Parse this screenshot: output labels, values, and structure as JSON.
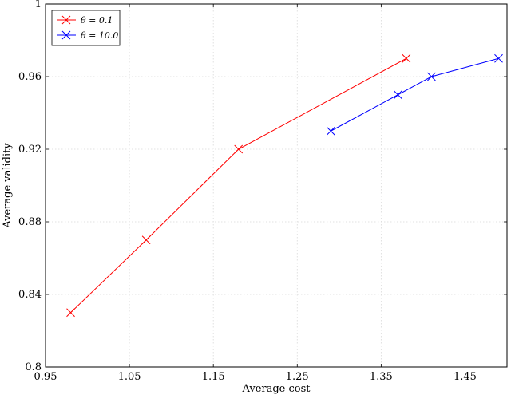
{
  "chart_data": {
    "type": "line",
    "title": "",
    "xlabel": "Average cost",
    "ylabel": "Average validity",
    "xlim": [
      0.95,
      1.5
    ],
    "ylim": [
      0.8,
      1.0
    ],
    "xticks": [
      0.95,
      1.05,
      1.15,
      1.25,
      1.35,
      1.45
    ],
    "xtick_labels": [
      "0.95",
      "1.05",
      "1.15",
      "1.25",
      "1.35",
      "1.45"
    ],
    "yticks": [
      0.8,
      0.84,
      0.88,
      0.92,
      0.96,
      1.0
    ],
    "ytick_labels": [
      "0.8",
      "0.84",
      "0.88",
      "0.92",
      "0.96",
      "1"
    ],
    "grid": true,
    "legend_position": "top-left",
    "marker": "x",
    "series": [
      {
        "name": "θ = 0.1",
        "color": "#ff0000",
        "x": [
          0.98,
          1.07,
          1.18,
          1.38
        ],
        "y": [
          0.83,
          0.87,
          0.92,
          0.97
        ]
      },
      {
        "name": "θ = 10.0",
        "color": "#0000ff",
        "x": [
          1.29,
          1.37,
          1.41,
          1.49
        ],
        "y": [
          0.93,
          0.95,
          0.96,
          0.97
        ]
      }
    ]
  }
}
